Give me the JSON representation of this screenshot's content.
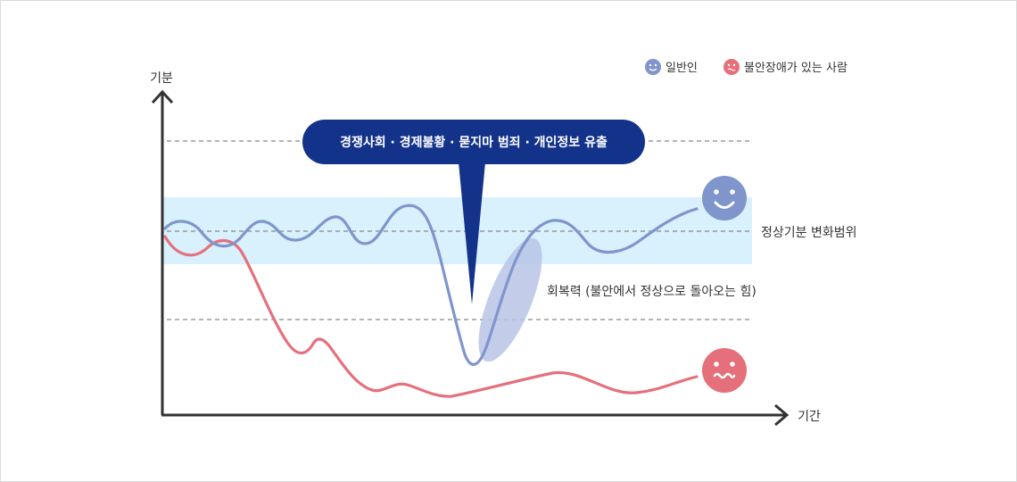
{
  "axes": {
    "y_label": "기분",
    "x_label": "기간"
  },
  "legend": [
    {
      "label": "일반인",
      "color": "#7f95cb"
    },
    {
      "label": "불안장애가 있는 사람",
      "color": "#e5707c"
    }
  ],
  "callout": {
    "text": "경쟁사회 · 경제불황 · 묻지마 범죄 · 개인정보 유출",
    "color": "#13328a"
  },
  "band": {
    "label": "정상기분 변화범위",
    "color": "#d8f1fc"
  },
  "resilience": {
    "label": "회복력 (불안에서 정상으로 돌아오는 힘)"
  },
  "colors": {
    "normal_line": "#7f95cb",
    "anxiety_line": "#e5707c",
    "axis": "#333333",
    "guide": "#888888"
  }
}
